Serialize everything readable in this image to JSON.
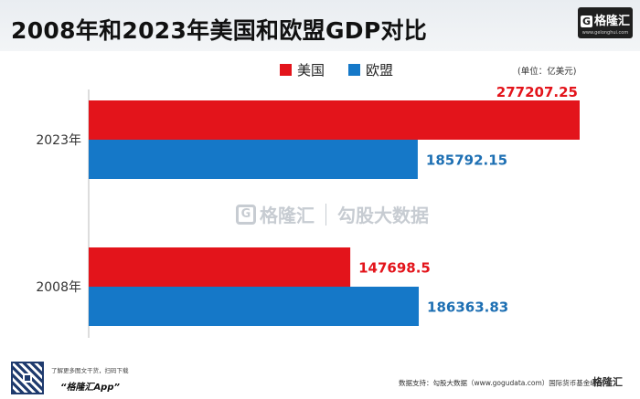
{
  "header": {
    "title": "2008年和2023年美国和欧盟GDP对比",
    "logo_text": "格隆汇",
    "logo_sub": "www.gelonghui.com"
  },
  "legend": {
    "items": [
      {
        "label": "美国",
        "color": "#e3141b"
      },
      {
        "label": "欧盟",
        "color": "#1578c8"
      }
    ],
    "unit": "(单位：亿美元)"
  },
  "watermark": {
    "brand": "格隆汇",
    "partner": "勾股大数据"
  },
  "footer": {
    "qr_text": "了解更多图文干货，扫码下载",
    "app_name": "“格隆汇App”",
    "source": "数据支持：勾股大数据（www.gogudata.com）国际货币基金组织",
    "logo_text": "格隆汇"
  },
  "chart_data": {
    "type": "bar",
    "orientation": "horizontal",
    "title": "2008年和2023年美国和欧盟GDP对比",
    "unit": "亿美元",
    "categories": [
      "2023年",
      "2008年"
    ],
    "series": [
      {
        "name": "美国",
        "color": "#e3141b",
        "label_color": "#e3141b",
        "values": [
          277207.25,
          147698.5
        ],
        "labels": [
          "277207.25",
          "147698.5"
        ]
      },
      {
        "name": "欧盟",
        "color": "#1578c8",
        "label_color": "#1d6fb3",
        "values": [
          185792.15,
          186363.83
        ],
        "labels": [
          "185792.15",
          "186363.83"
        ]
      }
    ],
    "xlim": [
      0,
      277207.25
    ],
    "grid": false,
    "legend_position": "top"
  }
}
